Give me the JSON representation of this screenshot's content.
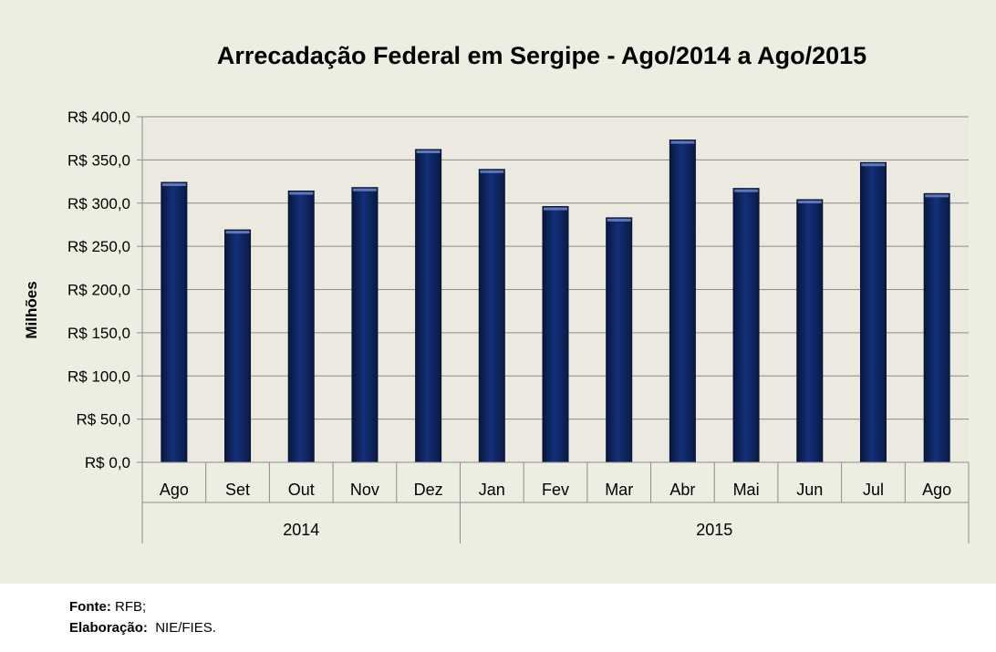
{
  "chart_data": {
    "type": "bar",
    "title": "Arrecadação Federal em Sergipe - Ago/2014 a Ago/2015",
    "ylabel": "Milhões",
    "xlabel": "",
    "ylim": [
      0,
      400
    ],
    "yticks": [
      0,
      50,
      100,
      150,
      200,
      250,
      300,
      350,
      400
    ],
    "ytick_prefix": "R$ ",
    "categories": [
      "Ago",
      "Set",
      "Out",
      "Nov",
      "Dez",
      "Jan",
      "Fev",
      "Mar",
      "Abr",
      "Mai",
      "Jun",
      "Jul",
      "Ago"
    ],
    "values": [
      324,
      269,
      314,
      318,
      362,
      339,
      296,
      283,
      373,
      317,
      304,
      347,
      311
    ],
    "groups": [
      {
        "label": "2014",
        "count": 5
      },
      {
        "label": "2015",
        "count": 8
      }
    ],
    "grid": true,
    "bar_color": "#0f2a66"
  },
  "footer": {
    "source_label": "Fonte:",
    "source_value": " RFB;",
    "prepared_label": "Elaboração:",
    "prepared_value": "  NIE/FIES."
  }
}
